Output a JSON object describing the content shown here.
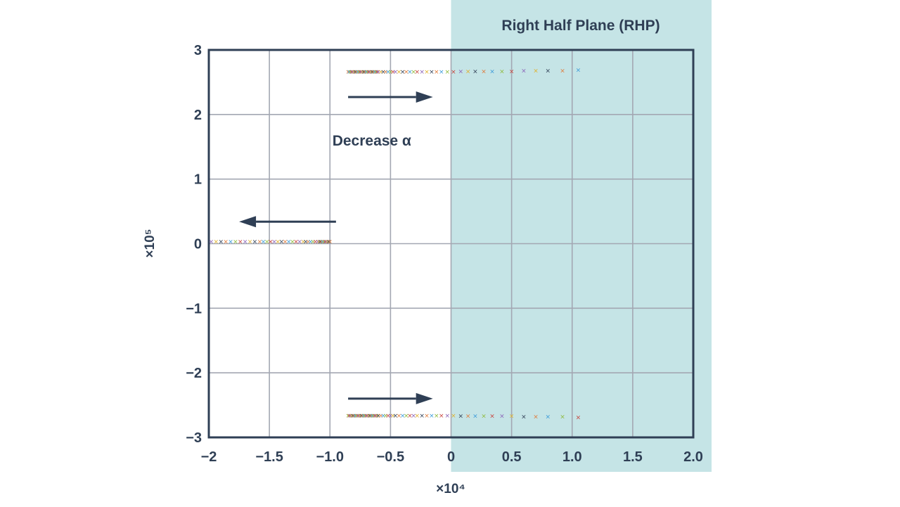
{
  "chart_data": {
    "type": "scatter",
    "title": "",
    "xlabel": "",
    "ylabel": "",
    "x_multiplier_label": "×10⁴",
    "y_multiplier_label": "×10⁵",
    "xlim": [
      -2.0,
      2.0
    ],
    "ylim": [
      -3,
      3
    ],
    "x_ticks": [
      "−2",
      "−1.5",
      "−1.0",
      "−0.5",
      "0",
      "0.5",
      "1.0",
      "1.5",
      "2.0"
    ],
    "y_ticks": [
      "3",
      "2",
      "1",
      "0",
      "−1",
      "−2",
      "−3"
    ],
    "grid": true,
    "marker": "x",
    "marker_symbol": "×",
    "shaded_region": {
      "label": "Right Half Plane (RHP)",
      "x_from": 0,
      "x_to": 2.0,
      "color": "#c5e4e6"
    },
    "annotations": [
      {
        "text": "Decrease α",
        "x": -0.98,
        "y": 1.52
      }
    ],
    "arrows": [
      {
        "from": [
          -0.85,
          2.27
        ],
        "to": [
          -0.15,
          2.27
        ]
      },
      {
        "from": [
          -0.95,
          0.34
        ],
        "to": [
          -1.75,
          0.34
        ]
      },
      {
        "from": [
          -0.85,
          -2.4
        ],
        "to": [
          -0.15,
          -2.4
        ]
      }
    ],
    "pole_colors": [
      "#e07b39",
      "#3a9bd9",
      "#8fba3c",
      "#c8423b",
      "#8a63b8",
      "#e0b12c",
      "#2f3f55"
    ],
    "series": [
      {
        "x": [
          -0.85,
          -0.84,
          -0.83,
          -0.82,
          -0.81,
          -0.8,
          -0.79,
          -0.78,
          -0.77,
          -0.76,
          -0.75,
          -0.74,
          -0.73,
          -0.72,
          -0.71,
          -0.7,
          -0.69,
          -0.68,
          -0.67,
          -0.66,
          -0.65,
          -0.64,
          -0.63,
          -0.62,
          -0.61,
          -0.6,
          -0.58,
          -0.56,
          -0.54,
          -0.52,
          -0.5,
          -0.48,
          -0.46,
          -0.43,
          -0.4,
          -0.37,
          -0.34,
          -0.31,
          -0.28,
          -0.24,
          -0.2,
          -0.16,
          -0.12,
          -0.08,
          -0.03,
          0.02,
          0.08,
          0.14,
          0.2,
          0.27,
          0.34,
          0.42,
          0.5,
          0.6,
          0.7,
          0.8,
          0.92,
          1.05
        ],
        "y": [
          2.66,
          2.66,
          2.66,
          2.66,
          2.66,
          2.66,
          2.66,
          2.66,
          2.66,
          2.66,
          2.66,
          2.66,
          2.66,
          2.66,
          2.66,
          2.66,
          2.66,
          2.66,
          2.66,
          2.66,
          2.66,
          2.66,
          2.66,
          2.66,
          2.66,
          2.66,
          2.66,
          2.66,
          2.66,
          2.66,
          2.66,
          2.66,
          2.66,
          2.66,
          2.66,
          2.66,
          2.66,
          2.66,
          2.66,
          2.66,
          2.66,
          2.66,
          2.66,
          2.66,
          2.66,
          2.66,
          2.67,
          2.67,
          2.67,
          2.67,
          2.67,
          2.67,
          2.67,
          2.68,
          2.68,
          2.68,
          2.68,
          2.69
        ]
      },
      {
        "x": [
          -0.85,
          -0.84,
          -0.83,
          -0.82,
          -0.81,
          -0.8,
          -0.79,
          -0.78,
          -0.77,
          -0.76,
          -0.75,
          -0.74,
          -0.73,
          -0.72,
          -0.71,
          -0.7,
          -0.69,
          -0.68,
          -0.67,
          -0.66,
          -0.65,
          -0.64,
          -0.63,
          -0.62,
          -0.61,
          -0.6,
          -0.58,
          -0.56,
          -0.54,
          -0.52,
          -0.5,
          -0.48,
          -0.46,
          -0.43,
          -0.4,
          -0.37,
          -0.34,
          -0.31,
          -0.28,
          -0.24,
          -0.2,
          -0.16,
          -0.12,
          -0.08,
          -0.03,
          0.02,
          0.08,
          0.14,
          0.2,
          0.27,
          0.34,
          0.42,
          0.5,
          0.6,
          0.7,
          0.8,
          0.92,
          1.05
        ],
        "y": [
          -2.66,
          -2.66,
          -2.66,
          -2.66,
          -2.66,
          -2.66,
          -2.66,
          -2.66,
          -2.66,
          -2.66,
          -2.66,
          -2.66,
          -2.66,
          -2.66,
          -2.66,
          -2.66,
          -2.66,
          -2.66,
          -2.66,
          -2.66,
          -2.66,
          -2.66,
          -2.66,
          -2.66,
          -2.66,
          -2.66,
          -2.66,
          -2.66,
          -2.66,
          -2.66,
          -2.66,
          -2.66,
          -2.66,
          -2.66,
          -2.66,
          -2.66,
          -2.66,
          -2.66,
          -2.66,
          -2.66,
          -2.66,
          -2.66,
          -2.66,
          -2.66,
          -2.66,
          -2.66,
          -2.67,
          -2.67,
          -2.67,
          -2.67,
          -2.67,
          -2.67,
          -2.67,
          -2.68,
          -2.68,
          -2.68,
          -2.68,
          -2.69
        ]
      },
      {
        "x": [
          -1.98,
          -1.94,
          -1.9,
          -1.86,
          -1.82,
          -1.78,
          -1.74,
          -1.7,
          -1.66,
          -1.62,
          -1.58,
          -1.55,
          -1.52,
          -1.49,
          -1.46,
          -1.43,
          -1.4,
          -1.37,
          -1.34,
          -1.31,
          -1.28,
          -1.25,
          -1.22,
          -1.2,
          -1.18,
          -1.16,
          -1.14,
          -1.12,
          -1.1,
          -1.09,
          -1.08,
          -1.07,
          -1.06,
          -1.05,
          -1.04,
          -1.03,
          -1.02,
          -1.01,
          -1.0
        ],
        "y": [
          0.03,
          0.03,
          0.03,
          0.03,
          0.03,
          0.03,
          0.03,
          0.03,
          0.03,
          0.03,
          0.03,
          0.03,
          0.03,
          0.03,
          0.03,
          0.03,
          0.03,
          0.03,
          0.03,
          0.03,
          0.03,
          0.03,
          0.03,
          0.03,
          0.03,
          0.03,
          0.03,
          0.03,
          0.03,
          0.03,
          0.03,
          0.03,
          0.03,
          0.03,
          0.03,
          0.03,
          0.03,
          0.03,
          0.03
        ]
      }
    ]
  }
}
